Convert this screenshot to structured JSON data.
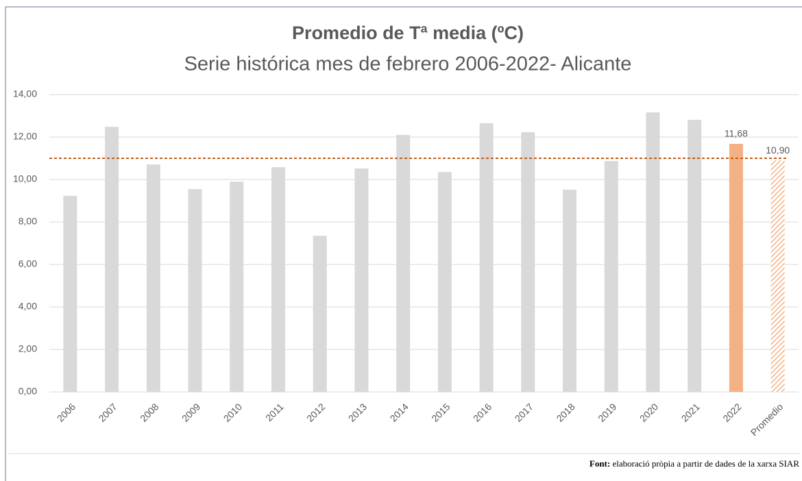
{
  "chart_data": {
    "type": "bar",
    "title": "Promedio de Tª media (ºC)",
    "subtitle": "Serie histórica mes de febrero 2006-2022- Alicante",
    "categories": [
      "2006",
      "2007",
      "2008",
      "2009",
      "2010",
      "2011",
      "2012",
      "2013",
      "2014",
      "2015",
      "2016",
      "2017",
      "2018",
      "2019",
      "2020",
      "2021",
      "2022",
      "Promedio"
    ],
    "values": [
      9.23,
      12.48,
      10.71,
      9.55,
      9.9,
      10.58,
      7.35,
      10.52,
      12.1,
      10.35,
      12.65,
      12.23,
      9.52,
      10.87,
      13.16,
      12.81,
      11.68,
      10.9
    ],
    "value_labels": [
      null,
      null,
      null,
      null,
      null,
      null,
      null,
      null,
      null,
      null,
      null,
      null,
      null,
      null,
      null,
      null,
      "11,68",
      "10,90"
    ],
    "colors": [
      "#d9d9d9",
      "#d9d9d9",
      "#d9d9d9",
      "#d9d9d9",
      "#d9d9d9",
      "#d9d9d9",
      "#d9d9d9",
      "#d9d9d9",
      "#d9d9d9",
      "#d9d9d9",
      "#d9d9d9",
      "#d9d9d9",
      "#d9d9d9",
      "#d9d9d9",
      "#d9d9d9",
      "#d9d9d9",
      "#f4b183",
      "#f4b183"
    ],
    "hatched_categories": [
      "Promedio"
    ],
    "average_line": {
      "value": 11.0,
      "color": "#c55a11"
    },
    "ylim": [
      0,
      14
    ],
    "yticks": [
      {
        "value": 0,
        "label": "0,00"
      },
      {
        "value": 2,
        "label": "2,00"
      },
      {
        "value": 4,
        "label": "4,00"
      },
      {
        "value": 6,
        "label": "6,00"
      },
      {
        "value": 8,
        "label": "8,00"
      },
      {
        "value": 10,
        "label": "10,00"
      },
      {
        "value": 12,
        "label": "12,00"
      },
      {
        "value": 14,
        "label": "14,00"
      }
    ],
    "grid": true
  },
  "source": {
    "label": "Font:",
    "text": "elaboració pròpia a partir de dades de la xarxa SIAR"
  }
}
